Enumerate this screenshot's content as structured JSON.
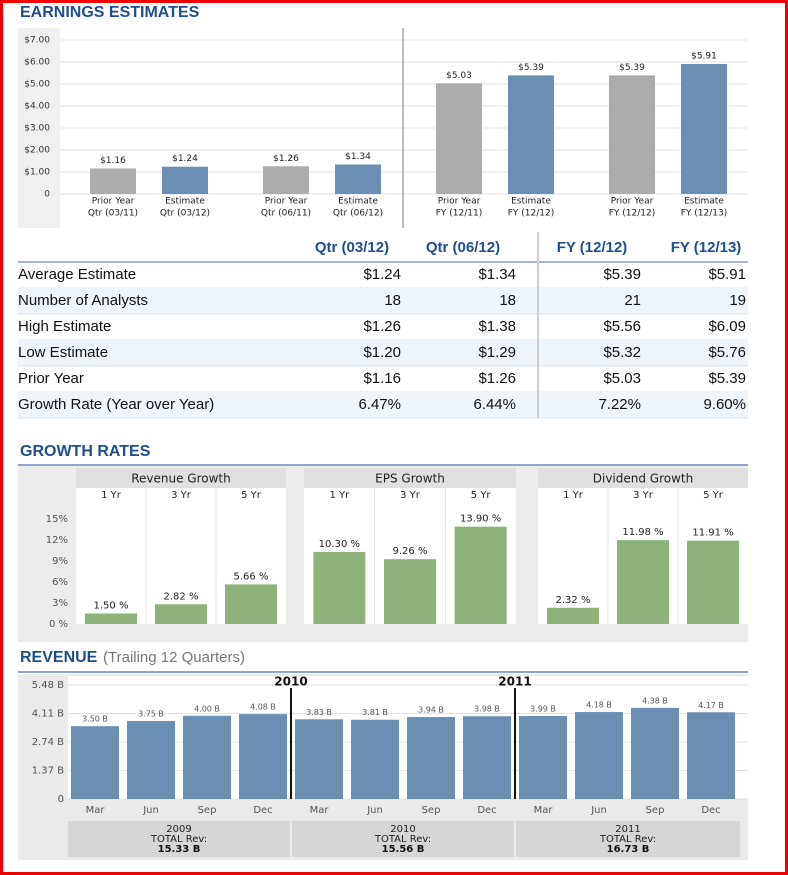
{
  "chart_data": [
    {
      "type": "bar",
      "title": "EARNINGS ESTIMATES",
      "categories": [
        [
          "Prior Year",
          "Qtr (03/11)"
        ],
        [
          "Estimate",
          "Qtr (03/12)"
        ],
        [
          "Prior Year",
          "Qtr (06/11)"
        ],
        [
          "Estimate",
          "Qtr (06/12)"
        ],
        [
          "Prior Year",
          "FY (12/11)"
        ],
        [
          "Estimate",
          "FY (12/12)"
        ],
        [
          "Prior Year",
          "FY (12/12)"
        ],
        [
          "Estimate",
          "FY (12/13)"
        ]
      ],
      "values": [
        1.16,
        1.24,
        1.26,
        1.34,
        5.03,
        5.39,
        5.39,
        5.91
      ],
      "value_labels": [
        "$1.16",
        "$1.24",
        "$1.26",
        "$1.34",
        "$5.03",
        "$5.39",
        "$5.39",
        "$5.91"
      ],
      "colors": [
        "#acacac",
        "#6a8fb3",
        "#acacac",
        "#6a8fb3",
        "#acacac",
        "#6a8fb3",
        "#acacac",
        "#6a8fb3"
      ],
      "ylim": [
        0,
        7.5
      ],
      "yticks": [
        0,
        {
          "value": 1,
          "label": "$1.00"
        },
        {
          "value": 2,
          "label": "$2.00"
        },
        {
          "value": 3,
          "label": "$3.00"
        },
        {
          "value": 4,
          "label": "$4.00"
        },
        {
          "value": 5,
          "label": "$5.00"
        },
        {
          "value": 6,
          "label": "$6.00"
        },
        {
          "value": 7,
          "label": "$7.00"
        }
      ],
      "grid": true
    },
    {
      "type": "bar",
      "title": "GROWTH RATES",
      "categories": [
        "1 Yr",
        "3 Yr",
        "5 Yr"
      ],
      "series": [
        {
          "name": "Revenue Growth",
          "color": "#8db27a",
          "values": [
            1.5,
            2.82,
            5.66
          ],
          "value_labels": [
            "1.50 %",
            "2.82 %",
            "5.66 %"
          ]
        },
        {
          "name": "EPS Growth",
          "color": "#8db27a",
          "values": [
            10.3,
            9.26,
            13.9
          ],
          "value_labels": [
            "10.30 %",
            "9.26 %",
            "13.90 %"
          ]
        },
        {
          "name": "Dividend Growth",
          "color": "#8db27a",
          "values": [
            2.32,
            11.98,
            11.91
          ],
          "value_labels": [
            "2.32 %",
            "11.98 %",
            "11.91 %"
          ]
        }
      ],
      "ylim": [
        0,
        16
      ],
      "yticks": [
        {
          "value": 0,
          "label": "0 %"
        },
        {
          "value": 3,
          "label": "3%"
        },
        {
          "value": 6,
          "label": "6%"
        },
        {
          "value": 9,
          "label": "9%"
        },
        {
          "value": 12,
          "label": "12%"
        },
        {
          "value": 15,
          "label": "15%"
        }
      ],
      "grid": false
    },
    {
      "type": "bar",
      "title": "REVENUE",
      "subtitle": "(Trailing 12 Quarters)",
      "categories": [
        "Mar",
        "Jun",
        "Sep",
        "Dec",
        "Mar",
        "Jun",
        "Sep",
        "Dec",
        "Mar",
        "Jun",
        "Sep",
        "Dec"
      ],
      "values": [
        3.5,
        3.75,
        4.0,
        4.08,
        3.83,
        3.81,
        3.94,
        3.98,
        3.99,
        4.18,
        4.38,
        4.17
      ],
      "value_labels": [
        "3.50 B",
        "3.75 B",
        "4.00 B",
        "4.08 B",
        "3.83 B",
        "3.81 B",
        "3.94 B",
        "3.98 B",
        "3.99 B",
        "4.18 B",
        "4.38 B",
        "4.17 B"
      ],
      "color": "#6a8fb3",
      "ylim": [
        0,
        5.48
      ],
      "yticks": [
        0,
        {
          "value": 1.37,
          "label": "1.37 B"
        },
        {
          "value": 2.74,
          "label": "2.74 B"
        },
        {
          "value": 4.11,
          "label": "4.11 B"
        },
        {
          "value": 5.48,
          "label": "5.48 B"
        }
      ],
      "grid": true,
      "years": [
        "2009",
        "2010",
        "2011"
      ],
      "total_caption": "TOTAL Rev:",
      "totals": [
        15.33,
        15.56,
        16.73
      ],
      "total_labels": [
        "15.33 B",
        "15.56 B",
        "16.73 B"
      ]
    }
  ],
  "table": {
    "columns": [
      "Qtr (03/12)",
      "Qtr (06/12)",
      "FY (12/12)",
      "FY (12/13)"
    ],
    "rows": [
      [
        "Average Estimate",
        "$1.24",
        "$1.34",
        "$5.39",
        "$5.91"
      ],
      [
        "Number of Analysts",
        "18",
        "18",
        "21",
        "19"
      ],
      [
        "High Estimate",
        "$1.26",
        "$1.38",
        "$5.56",
        "$6.09"
      ],
      [
        "Low Estimate",
        "$1.20",
        "$1.29",
        "$5.32",
        "$5.76"
      ],
      [
        "Prior Year",
        "$1.16",
        "$1.26",
        "$5.03",
        "$5.39"
      ],
      [
        "Growth Rate (Year over Year)",
        "6.47%",
        "6.44%",
        "7.22%",
        "9.60%"
      ]
    ]
  }
}
